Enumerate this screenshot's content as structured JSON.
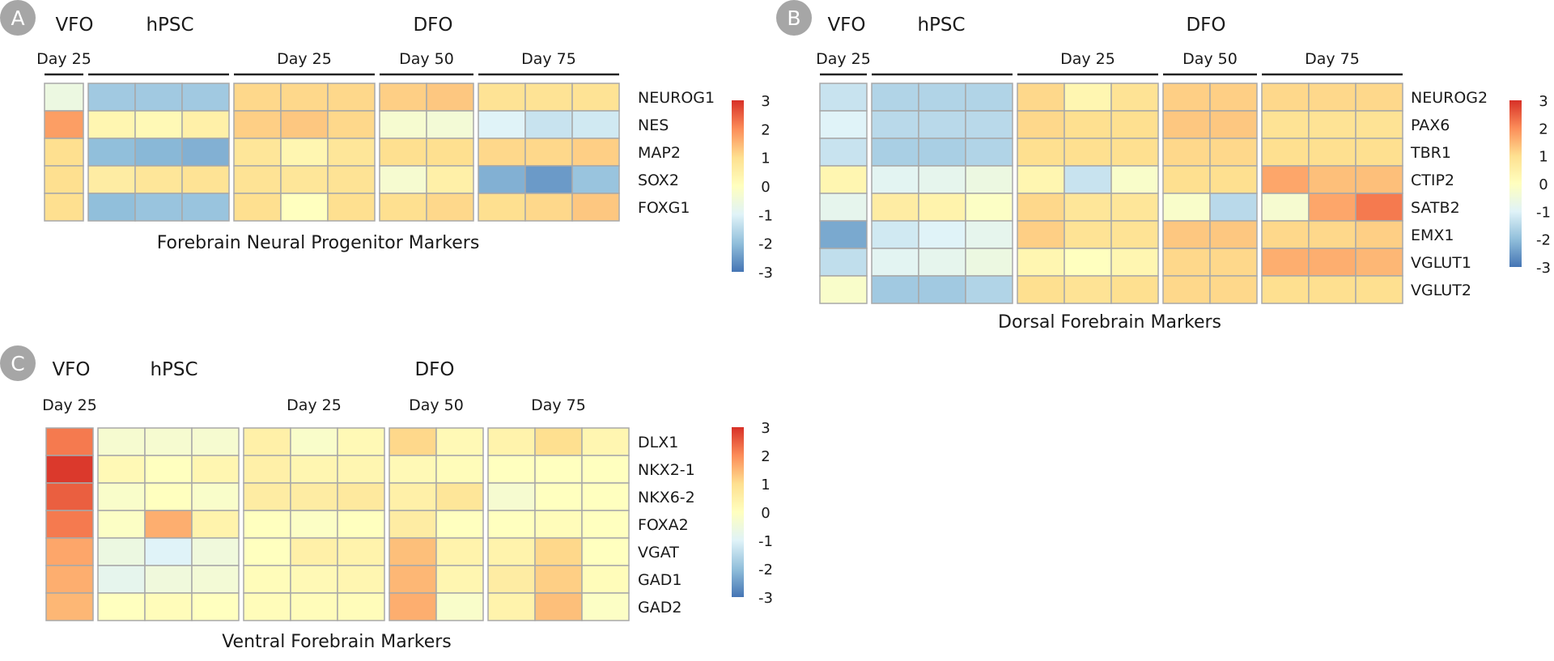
{
  "colors": {
    "scale_stops": [
      "#4575b4",
      "#91bfdb",
      "#e0f3f8",
      "#ffffbf",
      "#fee090",
      "#fc8d59",
      "#d73027"
    ],
    "cell_border": "#a8a8a8",
    "badge": "#a6a6a6",
    "bracket": "#222222"
  },
  "chart_data": [
    {
      "type": "heatmap",
      "panel_label": "A",
      "title": "Forebrain Neural Progenitor Markers",
      "groups": [
        {
          "name": "VFO",
          "day": "Day 25",
          "columns": 1
        },
        {
          "name": "hPSC",
          "day": "",
          "columns": 3
        },
        {
          "name": "DFO",
          "day": "Day 25",
          "columns": 3
        },
        {
          "name": "",
          "day": "Day 50",
          "columns": 2
        },
        {
          "name": "",
          "day": "Day 75",
          "columns": 3
        }
      ],
      "rows": [
        "NEUROG1",
        "NES",
        "MAP2",
        "SOX2",
        "FOXG1"
      ],
      "values": [
        [
          -0.6,
          -1.8,
          -1.8,
          -1.8,
          1.1,
          1.1,
          1.1,
          1.2,
          1.3,
          0.9,
          0.9,
          0.9
        ],
        [
          1.8,
          0.3,
          0.2,
          0.5,
          1.2,
          1.3,
          1.1,
          -0.3,
          -0.4,
          -1.0,
          -1.3,
          -1.2
        ],
        [
          1.0,
          -2.0,
          -2.1,
          -2.2,
          0.8,
          0.3,
          0.8,
          1.0,
          1.0,
          1.1,
          1.1,
          1.2
        ],
        [
          1.0,
          0.6,
          0.8,
          0.9,
          0.9,
          0.8,
          0.9,
          -0.3,
          0.5,
          -2.2,
          -2.5,
          -1.9
        ],
        [
          1.0,
          -2.0,
          -1.9,
          -1.9,
          1.0,
          0.0,
          1.0,
          1.0,
          1.1,
          1.0,
          1.1,
          1.3
        ]
      ],
      "color_scale": {
        "min": -3,
        "max": 3,
        "ticks": [
          "3",
          "2",
          "1",
          "0",
          "-1",
          "-2",
          "-3"
        ]
      }
    },
    {
      "type": "heatmap",
      "panel_label": "B",
      "title": "Dorsal Forebrain Markers",
      "groups": [
        {
          "name": "VFO",
          "day": "Day 25",
          "columns": 1
        },
        {
          "name": "hPSC",
          "day": "",
          "columns": 3
        },
        {
          "name": "DFO",
          "day": "Day 25",
          "columns": 3
        },
        {
          "name": "",
          "day": "Day 50",
          "columns": 2
        },
        {
          "name": "",
          "day": "Day 75",
          "columns": 3
        }
      ],
      "rows": [
        "NEUROG2",
        "PAX6",
        "TBR1",
        "CTIP2",
        "SATB2",
        "EMX1",
        "VGLUT1",
        "VGLUT2"
      ],
      "values": [
        [
          -1.3,
          -1.6,
          -1.6,
          -1.6,
          1.1,
          0.3,
          0.9,
          1.2,
          1.2,
          1.1,
          1.1,
          1.1
        ],
        [
          -1.0,
          -1.5,
          -1.5,
          -1.5,
          1.1,
          1.0,
          1.0,
          1.3,
          1.3,
          0.9,
          0.9,
          0.9
        ],
        [
          -1.3,
          -1.7,
          -1.7,
          -1.6,
          1.0,
          1.0,
          1.0,
          1.1,
          1.1,
          1.0,
          1.0,
          1.0
        ],
        [
          0.3,
          -0.9,
          -0.8,
          -0.6,
          0.3,
          -1.3,
          -0.2,
          1.0,
          1.0,
          1.7,
          1.4,
          1.4
        ],
        [
          -0.8,
          0.6,
          0.4,
          -0.1,
          1.1,
          0.8,
          0.8,
          -0.2,
          -1.5,
          -0.3,
          1.7,
          2.2
        ],
        [
          -2.3,
          -1.2,
          -1.0,
          -0.8,
          1.2,
          0.9,
          0.9,
          1.3,
          1.3,
          1.1,
          1.1,
          1.2
        ],
        [
          -1.4,
          -0.9,
          -0.8,
          -0.6,
          0.3,
          0.0,
          0.3,
          1.1,
          1.1,
          1.6,
          1.6,
          1.5
        ],
        [
          -0.2,
          -1.8,
          -1.8,
          -1.6,
          1.0,
          0.9,
          1.0,
          1.1,
          1.1,
          1.0,
          1.0,
          1.0
        ]
      ],
      "color_scale": {
        "min": -3,
        "max": 3,
        "ticks": [
          "3",
          "2",
          "1",
          "0",
          "-1",
          "-2",
          "-3"
        ]
      }
    },
    {
      "type": "heatmap",
      "panel_label": "C",
      "title": "Ventral Forebrain Markers",
      "groups": [
        {
          "name": "VFO",
          "day": "Day 25",
          "columns": 1
        },
        {
          "name": "hPSC",
          "day": "",
          "columns": 3
        },
        {
          "name": "DFO",
          "day": "Day 25",
          "columns": 3
        },
        {
          "name": "",
          "day": "Day 50",
          "columns": 2
        },
        {
          "name": "",
          "day": "Day 75",
          "columns": 3
        }
      ],
      "rows": [
        "DLX1",
        "NKX2-1",
        "NKX6-2",
        "FOXA2",
        "VGAT",
        "GAD1",
        "GAD2"
      ],
      "values": [
        [
          2.2,
          -0.3,
          -0.3,
          -0.3,
          0.5,
          -0.2,
          0.2,
          1.1,
          0.2,
          0.4,
          1.0,
          0.3
        ],
        [
          2.9,
          0.2,
          0.0,
          0.3,
          0.5,
          0.3,
          0.3,
          0.2,
          0.1,
          0.0,
          0.0,
          0.0
        ],
        [
          2.5,
          -0.2,
          0.0,
          -0.2,
          0.6,
          0.6,
          0.7,
          0.5,
          0.8,
          -0.3,
          0.0,
          0.0
        ],
        [
          2.2,
          -0.1,
          1.6,
          0.4,
          0.0,
          -0.1,
          0.0,
          0.6,
          0.0,
          0.0,
          0.1,
          0.0
        ],
        [
          1.7,
          -0.6,
          -1.0,
          -0.5,
          0.0,
          0.5,
          0.4,
          1.4,
          0.4,
          0.4,
          1.1,
          0.0
        ],
        [
          1.6,
          -0.8,
          -0.5,
          -0.4,
          0.1,
          0.2,
          0.3,
          1.5,
          0.3,
          0.6,
          1.2,
          0.1
        ],
        [
          1.5,
          0.0,
          0.1,
          0.0,
          0.1,
          0.1,
          0.1,
          1.6,
          -0.2,
          0.4,
          1.4,
          -0.1
        ]
      ],
      "color_scale": {
        "min": -3,
        "max": 3,
        "ticks": [
          "3",
          "2",
          "1",
          "0",
          "-1",
          "-2",
          "-3"
        ]
      }
    }
  ]
}
